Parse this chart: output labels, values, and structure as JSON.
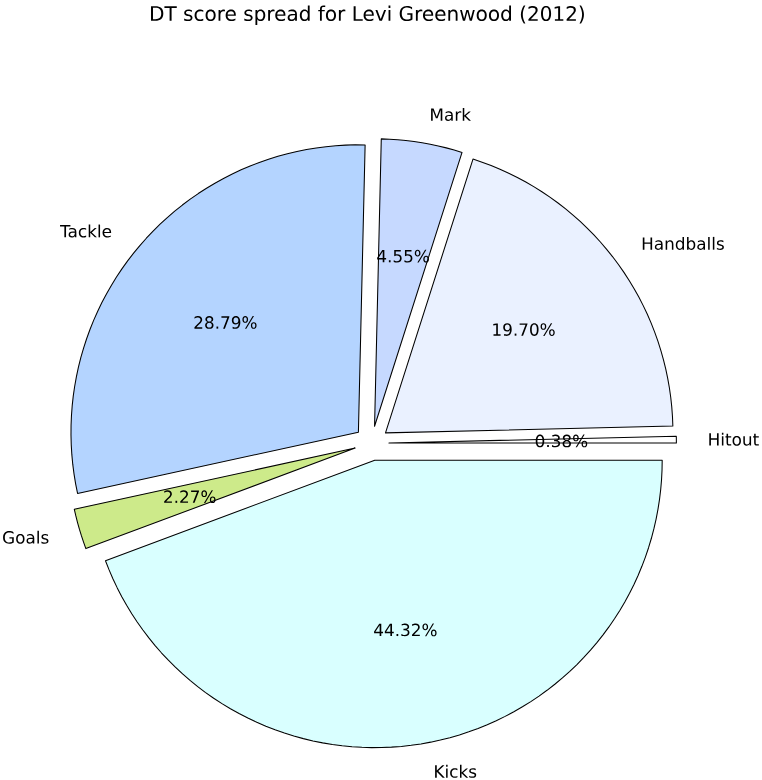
{
  "chart_data": {
    "type": "pie",
    "title": "DT score spread for Levi Greenwood (2012)",
    "categories": [
      "Hitout",
      "Handballs",
      "Mark",
      "Tackle",
      "Goals",
      "Kicks"
    ],
    "values": [
      0.38,
      19.7,
      4.55,
      28.79,
      2.27,
      44.32
    ],
    "value_labels": [
      "0.38%",
      "19.70%",
      "4.55%",
      "28.79%",
      "2.27%",
      "44.32%"
    ],
    "colors": [
      "#ffffff",
      "#eaf1ff",
      "#c6d9ff",
      "#b4d4ff",
      "#cdea8a",
      "#d9ffff"
    ]
  }
}
